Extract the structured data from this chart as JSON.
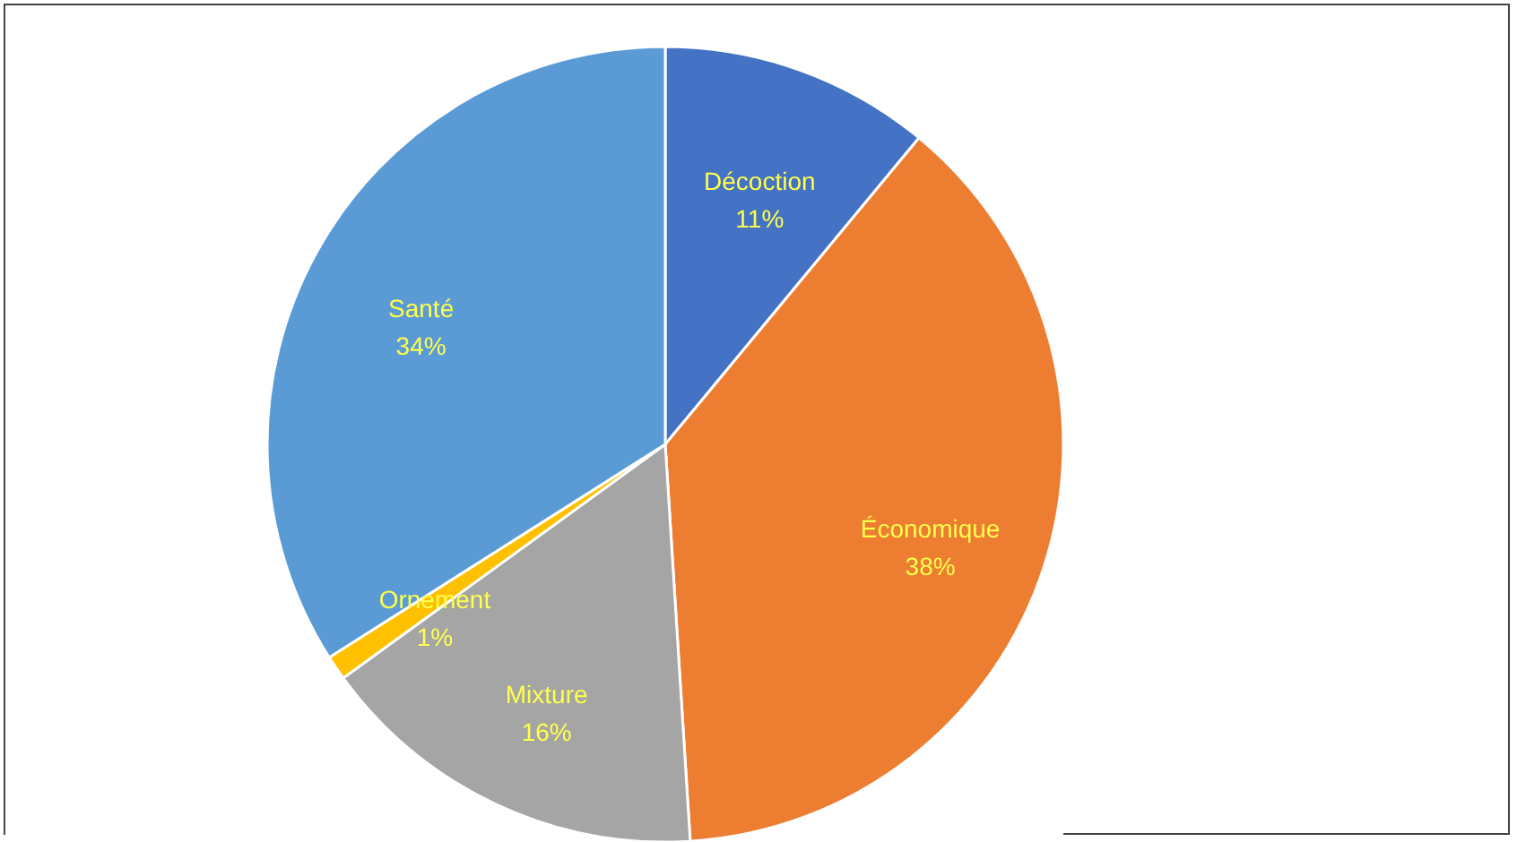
{
  "chart_data": {
    "type": "pie",
    "categories": [
      "Décoction",
      "Économique",
      "Mixture",
      "Ornement",
      "Santé"
    ],
    "values": [
      11,
      38,
      16,
      1,
      34
    ],
    "value_labels": [
      "11%",
      "38%",
      "16%",
      "1%",
      "34%"
    ],
    "colors": [
      "#4472c4",
      "#ed7d31",
      "#a5a5a5",
      "#ffc000",
      "#5b9bd5"
    ]
  }
}
